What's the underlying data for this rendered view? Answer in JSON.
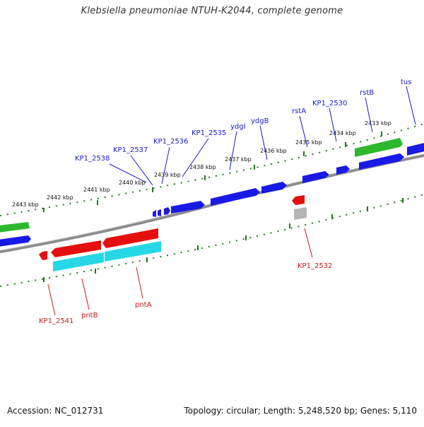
{
  "title": "Klebsiella pneumoniae NTUH-K2044, complete genome",
  "footer": {
    "accession": "Accession: NC_012731",
    "summary": "Topology: circular; Length: 5,248,520 bp; Genes: 5,110"
  },
  "colors": {
    "forward_cds": "#1a1ae6",
    "reverse_cds": "#e60f0f",
    "rna_gene": "#2eb82e",
    "reverse_feature_shadow": "#26d8e6",
    "pseudo": "#b5b5b5",
    "backbone": "#8c8c8c",
    "ruler_dots": "#1f7a1f",
    "upper_label": "#1a1acc",
    "lower_label": "#cc1a1a"
  },
  "ruler_labels": [
    "2443 kbp",
    "2442 kbp",
    "2441 kbp",
    "2440 kbp",
    "2439 kbp",
    "2438 kbp",
    "2437 kbp",
    "2436 kbp",
    "2435 kbp",
    "2434 kbp",
    "2433 kbp"
  ],
  "upper_gene_labels": [
    "KP1_2538",
    "KP1_2537",
    "KP1_2536",
    "KP1_2535",
    "ydgI",
    "ydgB",
    "rstA",
    "KP1_2530",
    "rstB",
    "tus"
  ],
  "lower_gene_labels": [
    "KP1_2541",
    "pntB",
    "pntA",
    "KP1_2532"
  ]
}
